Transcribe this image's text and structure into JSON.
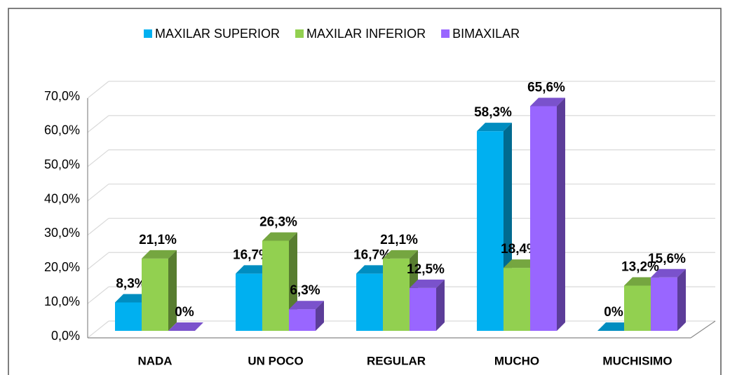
{
  "chart_data": {
    "type": "bar3d",
    "categories": [
      "NADA",
      "UN POCO",
      "REGULAR",
      "MUCHO",
      "MUCHISIMO"
    ],
    "series": [
      {
        "name": "MAXILAR SUPERIOR",
        "color": "#00b0f0",
        "values": [
          8.3,
          16.7,
          16.7,
          58.3,
          0
        ],
        "value_labels": [
          "8,3%",
          "16,7%",
          "16,7%",
          "58,3%",
          "0%"
        ]
      },
      {
        "name": "MAXILAR INFERIOR",
        "color": "#92d050",
        "values": [
          21.1,
          26.3,
          21.1,
          18.4,
          13.2
        ],
        "value_labels": [
          "21,1%",
          "26,3%",
          "21,1%",
          "18,4%",
          "13,2%"
        ]
      },
      {
        "name": "BIMAXILAR",
        "color": "#9966ff",
        "values": [
          0,
          6.3,
          12.5,
          65.6,
          15.6
        ],
        "value_labels": [
          "0%",
          "6,3%",
          "12,5%",
          "65,6%",
          "15,6%"
        ]
      }
    ],
    "ylim": [
      0,
      70
    ],
    "yticks": [
      {
        "value": 0,
        "label": "0,0%"
      },
      {
        "value": 10,
        "label": "10,0%"
      },
      {
        "value": 20,
        "label": "20,0%"
      },
      {
        "value": 30,
        "label": "30,0%"
      },
      {
        "value": 40,
        "label": "40,0%"
      },
      {
        "value": 50,
        "label": "50,0%"
      },
      {
        "value": 60,
        "label": "60,0%"
      },
      {
        "value": 70,
        "label": "70,0%"
      }
    ],
    "grid": true,
    "legend": "top"
  }
}
